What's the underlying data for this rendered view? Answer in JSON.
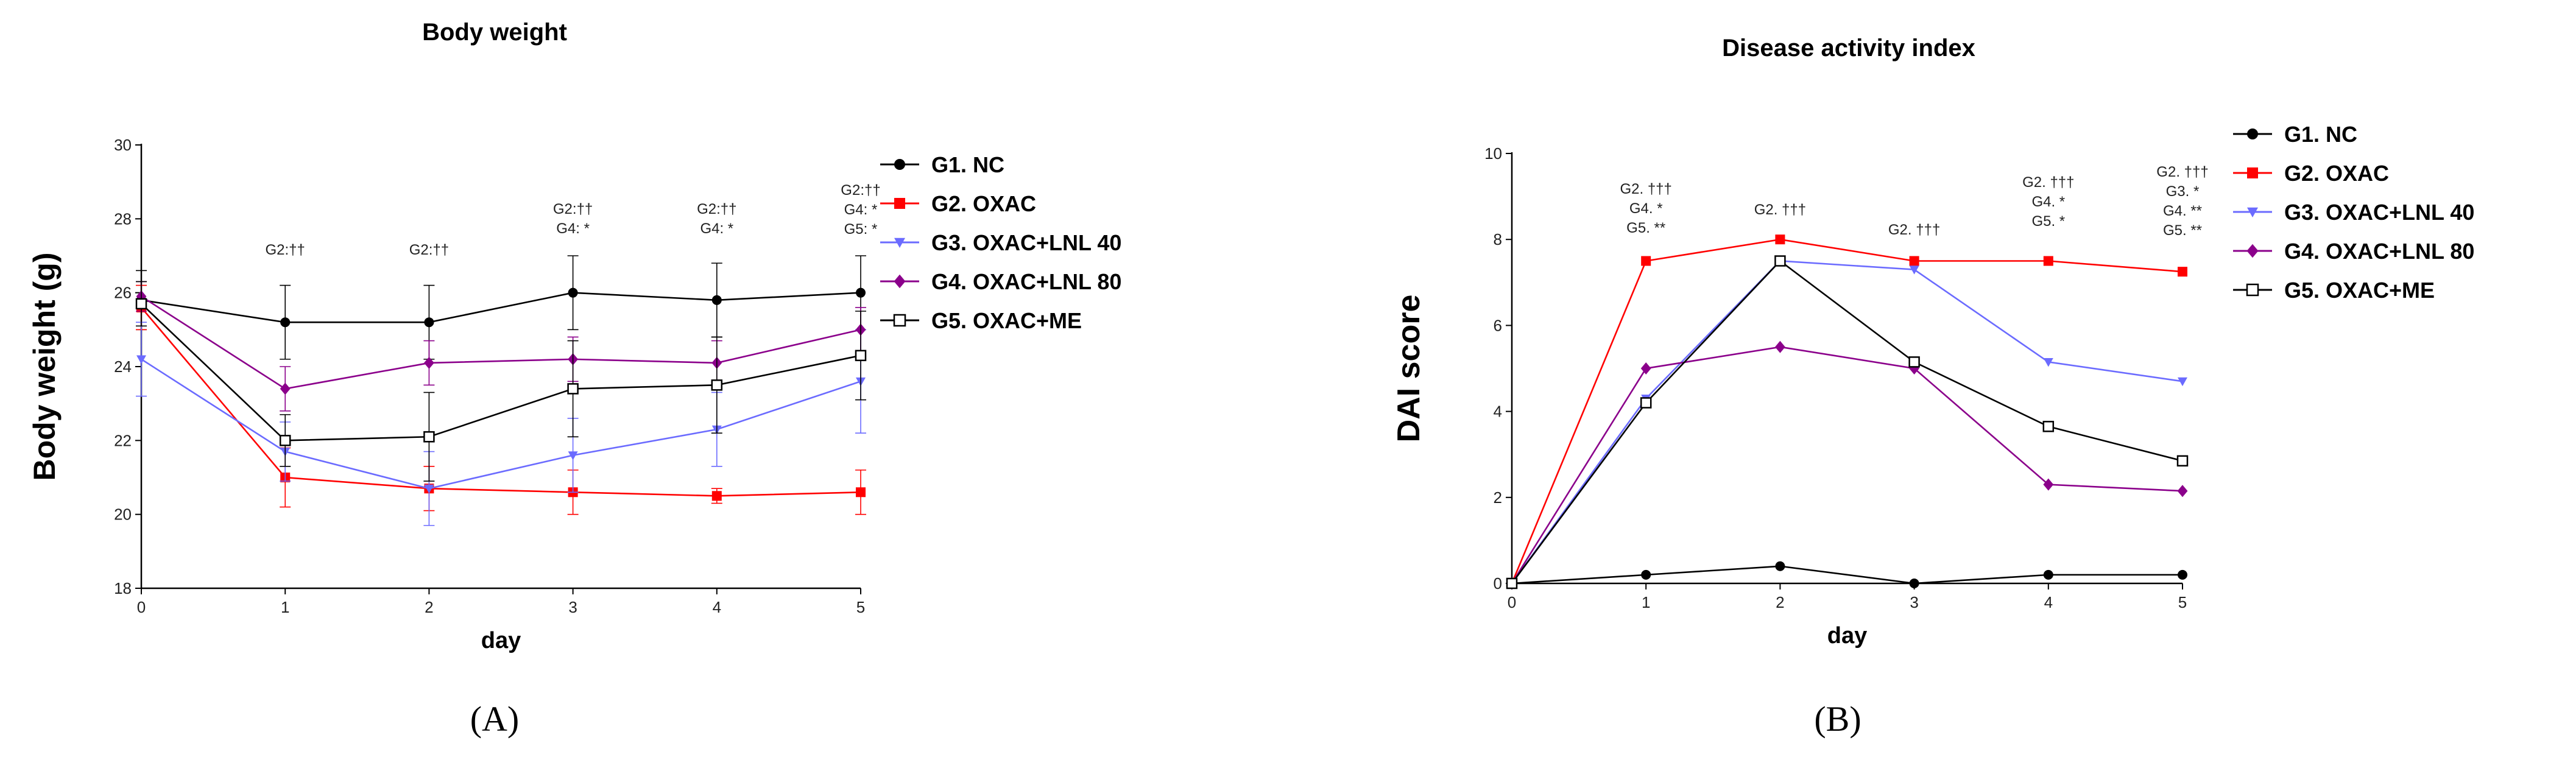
{
  "chart_data": [
    {
      "type": "line",
      "panel_label": "(A)",
      "title": "Body weight",
      "xlabel": "day",
      "ylabel": "Body weight (g)",
      "xlim": [
        0,
        5
      ],
      "ylim": [
        18,
        30
      ],
      "x": [
        0,
        1,
        2,
        3,
        4,
        5
      ],
      "x_ticks": [
        "0",
        "1",
        "2",
        "3",
        "4",
        "5"
      ],
      "y_ticks": [
        "18",
        "20",
        "22",
        "24",
        "26",
        "28",
        "30"
      ],
      "series": [
        {
          "name": "G1. NC",
          "color": "#000000",
          "marker": "circle",
          "values": [
            25.8,
            25.2,
            25.2,
            26.0,
            25.8,
            26.0
          ],
          "errors": [
            0.8,
            1.0,
            1.0,
            1.0,
            1.0,
            1.0
          ]
        },
        {
          "name": "G2. OXAC",
          "color": "#ff0000",
          "marker": "square",
          "values": [
            25.6,
            21.0,
            20.7,
            20.6,
            20.5,
            20.6
          ],
          "errors": [
            0.6,
            0.8,
            0.6,
            0.6,
            0.2,
            0.6
          ]
        },
        {
          "name": "G3. OXAC+LNL 40",
          "color": "#6b6bff",
          "marker": "triangle-down",
          "values": [
            24.2,
            21.7,
            20.7,
            21.6,
            22.3,
            23.6
          ],
          "errors": [
            1.0,
            0.8,
            1.0,
            1.0,
            1.0,
            1.4
          ]
        },
        {
          "name": "G4. OXAC+LNL 80",
          "color": "#8b008b",
          "marker": "diamond",
          "values": [
            25.9,
            23.4,
            24.1,
            24.2,
            24.1,
            25.0
          ],
          "errors": [
            0.4,
            0.6,
            0.6,
            0.6,
            0.6,
            0.6
          ]
        },
        {
          "name": "G5. OXAC+ME",
          "color": "#000000",
          "marker": "open-square",
          "values": [
            25.7,
            22.0,
            22.1,
            23.4,
            23.5,
            24.3
          ],
          "errors": [
            0.6,
            0.7,
            1.2,
            1.3,
            1.3,
            1.2
          ]
        }
      ],
      "annotations": [
        {
          "x": 1,
          "lines": [
            "G2:††"
          ]
        },
        {
          "x": 2,
          "lines": [
            "G2:††"
          ]
        },
        {
          "x": 3,
          "lines": [
            "G2:††",
            "G4: *"
          ]
        },
        {
          "x": 4,
          "lines": [
            "G2:††",
            "G4: *"
          ]
        },
        {
          "x": 5,
          "lines": [
            "G2:††",
            "G4: *",
            "G5: *"
          ]
        }
      ]
    },
    {
      "type": "line",
      "panel_label": "(B)",
      "title": "Disease activity index",
      "xlabel": "day",
      "ylabel": "DAI score",
      "xlim": [
        0,
        5
      ],
      "ylim": [
        0,
        10
      ],
      "x": [
        0,
        1,
        2,
        3,
        4,
        5
      ],
      "x_ticks": [
        "0",
        "1",
        "2",
        "3",
        "4",
        "5"
      ],
      "y_ticks": [
        "0",
        "2",
        "4",
        "6",
        "8",
        "10"
      ],
      "series": [
        {
          "name": "G1. NC",
          "color": "#000000",
          "marker": "circle",
          "values": [
            0,
            0.2,
            0.4,
            0,
            0.2,
            0.2
          ]
        },
        {
          "name": "G2. OXAC",
          "color": "#ff0000",
          "marker": "square",
          "values": [
            0,
            7.5,
            8.0,
            7.5,
            7.5,
            7.25
          ]
        },
        {
          "name": "G3. OXAC+LNL 40",
          "color": "#6b6bff",
          "marker": "triangle-down",
          "values": [
            0,
            4.3,
            7.5,
            7.3,
            5.15,
            4.7
          ]
        },
        {
          "name": "G4. OXAC+LNL 80",
          "color": "#8b008b",
          "marker": "diamond",
          "values": [
            0,
            5.0,
            5.5,
            5.0,
            2.3,
            2.15
          ]
        },
        {
          "name": "G5. OXAC+ME",
          "color": "#000000",
          "marker": "open-square",
          "values": [
            0,
            4.2,
            7.5,
            5.15,
            3.65,
            2.85
          ]
        }
      ],
      "annotations": [
        {
          "x": 1,
          "lines": [
            "G2. †††",
            "G4. *",
            "G5. **"
          ]
        },
        {
          "x": 2,
          "lines": [
            "G2. †††"
          ]
        },
        {
          "x": 3,
          "lines": [
            "G2. †††"
          ]
        },
        {
          "x": 4,
          "lines": [
            "G2. †††",
            "G4. *",
            "G5. *"
          ]
        },
        {
          "x": 5,
          "lines": [
            "G2. †††",
            "G3. *",
            "G4. **",
            "G5. **"
          ]
        }
      ]
    }
  ]
}
